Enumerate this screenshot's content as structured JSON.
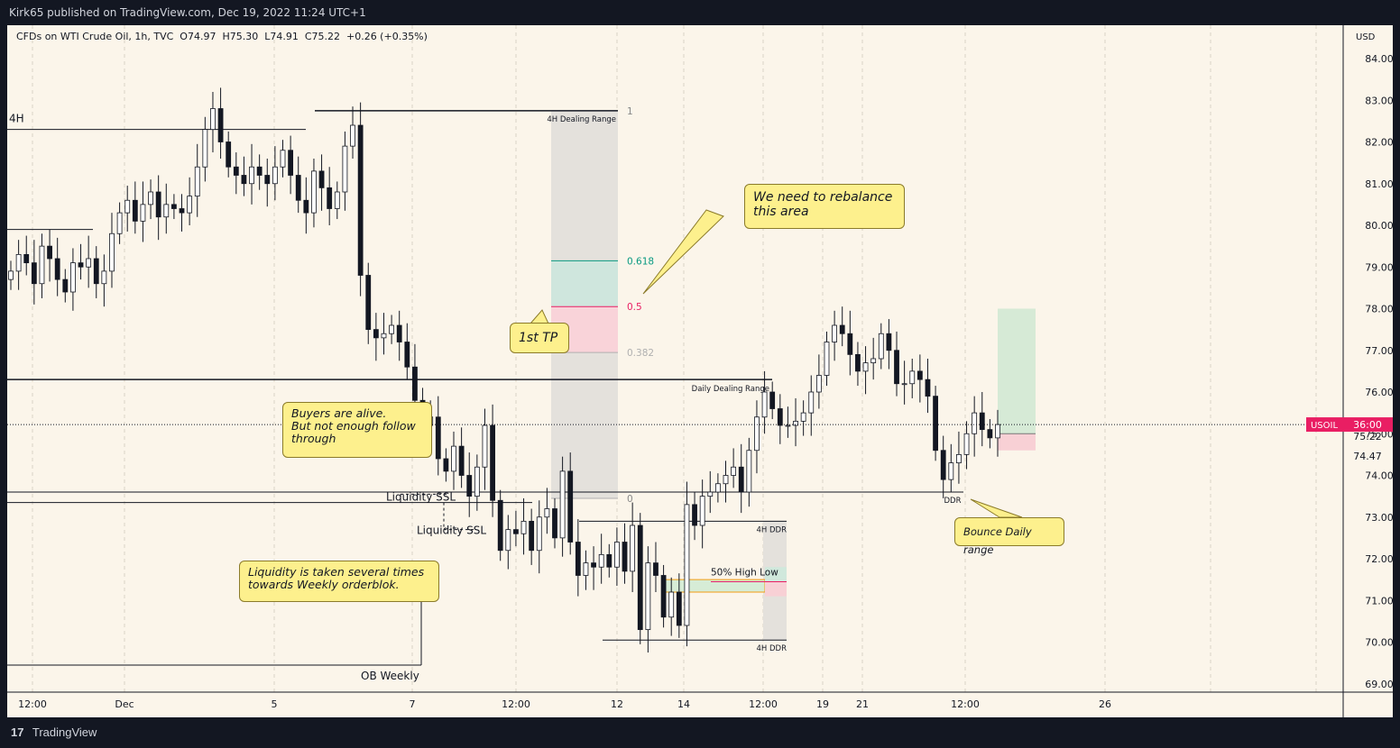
{
  "header": {
    "published": "Kirk65 published on TradingView.com, Dec 19, 2022 11:24 UTC+1",
    "symbol_line": "CFDs on WTI Crude Oil, 1h, TVC  O74.97  H75.30  L74.91  C75.22  +0.26 (+0.35%)"
  },
  "footer": {
    "brand": "TradingView",
    "logo": "17"
  },
  "colors": {
    "background": "#fbf5ea",
    "up": "#131722",
    "down": "#131722",
    "tp_green": "#d0e8dc",
    "tp_red": "#f8d0d5",
    "accent_red": "#e91e63",
    "fib_teal": "#089981"
  },
  "chart_data": {
    "type": "candlestick",
    "symbol": "USOIL",
    "currency": "USD",
    "interval": "1h",
    "ylim": [
      68.8,
      84.8
    ],
    "y_ticks": [
      "84.00",
      "83.00",
      "82.00",
      "81.00",
      "80.00",
      "79.00",
      "78.00",
      "77.00",
      "76.00",
      "75.00",
      "74.00",
      "73.00",
      "72.00",
      "71.00",
      "70.00",
      "69.00"
    ],
    "x_ticks": [
      "12:00",
      "Dec",
      "5",
      "7",
      "12:00",
      "12",
      "14",
      "12:00",
      "19",
      "21",
      "12:00",
      "26"
    ],
    "last_price": {
      "label": "USOIL",
      "value": "75.22",
      "countdown": "36:00"
    },
    "price_marker": "74.47",
    "ohlc": {
      "open": 74.97,
      "high": 75.3,
      "low": 74.91,
      "close": 75.22,
      "change": 0.26,
      "change_pct": 0.35
    },
    "series_close": [
      78.9,
      79.3,
      79.1,
      78.6,
      79.5,
      79.2,
      78.7,
      78.4,
      79.1,
      79.0,
      79.2,
      78.6,
      78.9,
      79.8,
      80.3,
      80.6,
      80.1,
      80.5,
      80.8,
      80.2,
      80.5,
      80.4,
      80.3,
      80.7,
      81.4,
      82.3,
      82.8,
      82.0,
      81.4,
      81.2,
      81.0,
      81.4,
      81.2,
      81.0,
      81.4,
      81.8,
      81.2,
      80.6,
      80.3,
      81.3,
      80.9,
      80.4,
      80.8,
      81.9,
      82.4,
      78.8,
      77.5,
      77.3,
      77.4,
      77.6,
      77.2,
      76.6,
      75.8,
      75.2,
      75.4,
      74.4,
      74.1,
      74.7,
      74.0,
      73.5,
      74.2,
      75.2,
      73.4,
      72.2,
      72.7,
      72.6,
      72.9,
      72.2,
      73.0,
      73.2,
      72.5,
      74.1,
      72.4,
      71.6,
      71.9,
      71.8,
      72.1,
      71.8,
      72.4,
      71.7,
      72.8,
      70.3,
      71.9,
      71.6,
      70.6,
      71.2,
      70.4,
      73.3,
      72.8,
      73.5,
      73.6,
      73.8,
      74.0,
      74.2,
      73.6,
      74.6,
      75.4,
      76.0,
      75.6,
      75.2,
      75.2,
      75.3,
      75.5,
      76.0,
      76.4,
      77.2,
      77.6,
      77.4,
      76.9,
      76.5,
      76.7,
      76.8,
      77.4,
      77.0,
      76.2,
      76.2,
      76.5,
      76.3,
      75.9,
      74.6,
      73.9,
      74.3,
      74.5,
      75.0,
      75.5,
      75.1,
      74.9,
      75.22
    ],
    "levels": [
      {
        "name": "4H",
        "value": 82.3
      },
      {
        "name": "range-top",
        "value": 82.75
      },
      {
        "name": "weekly-high",
        "value": 79.9
      },
      {
        "name": "daily-dealing-range",
        "value": 76.3
      },
      {
        "name": "ssl-1",
        "value": 73.6
      },
      {
        "name": "ssl-2",
        "value": 73.35
      },
      {
        "name": "4H-DDR-top",
        "value": 72.9
      },
      {
        "name": "4H-DDR-bottom",
        "value": 70.05
      },
      {
        "name": "ob-weekly",
        "value": 69.45
      },
      {
        "name": "ddr",
        "value": 73.6
      }
    ],
    "fib": [
      {
        "label": "1",
        "value": 82.75
      },
      {
        "label": "0.618",
        "value": 79.15
      },
      {
        "label": "0.5",
        "value": 78.05
      },
      {
        "label": "0.382",
        "value": 76.95
      },
      {
        "label": "0",
        "value": 73.45
      }
    ],
    "position": {
      "entry": 75.0,
      "target": 78.0,
      "stop": 74.6
    },
    "annotations": {
      "four_h": "4H",
      "dealing_range_4h": "4H Dealing Range",
      "daily_dealing_range": "Daily Dealing Range",
      "liquidity_ssl_1": "Liquidity SSL",
      "liquidity_ssl_2": "Liquidity SSL",
      "ob_weekly": "OB Weekly",
      "ddr_4h_top": "4H DDR",
      "ddr_4h_bottom": "4H DDR",
      "half_high_low": "50% High Low",
      "ddr": "DDR"
    }
  },
  "notes": {
    "rebalance": "We need to rebalance\n  this area",
    "first_tp": "1st TP",
    "buyers": "Buyers are alive.\nBut not enough follow\nthrough",
    "liquidity": "Liquidity is taken several times\ntowards Weekly orderblok.",
    "bounce": "Bounce Daily range"
  }
}
